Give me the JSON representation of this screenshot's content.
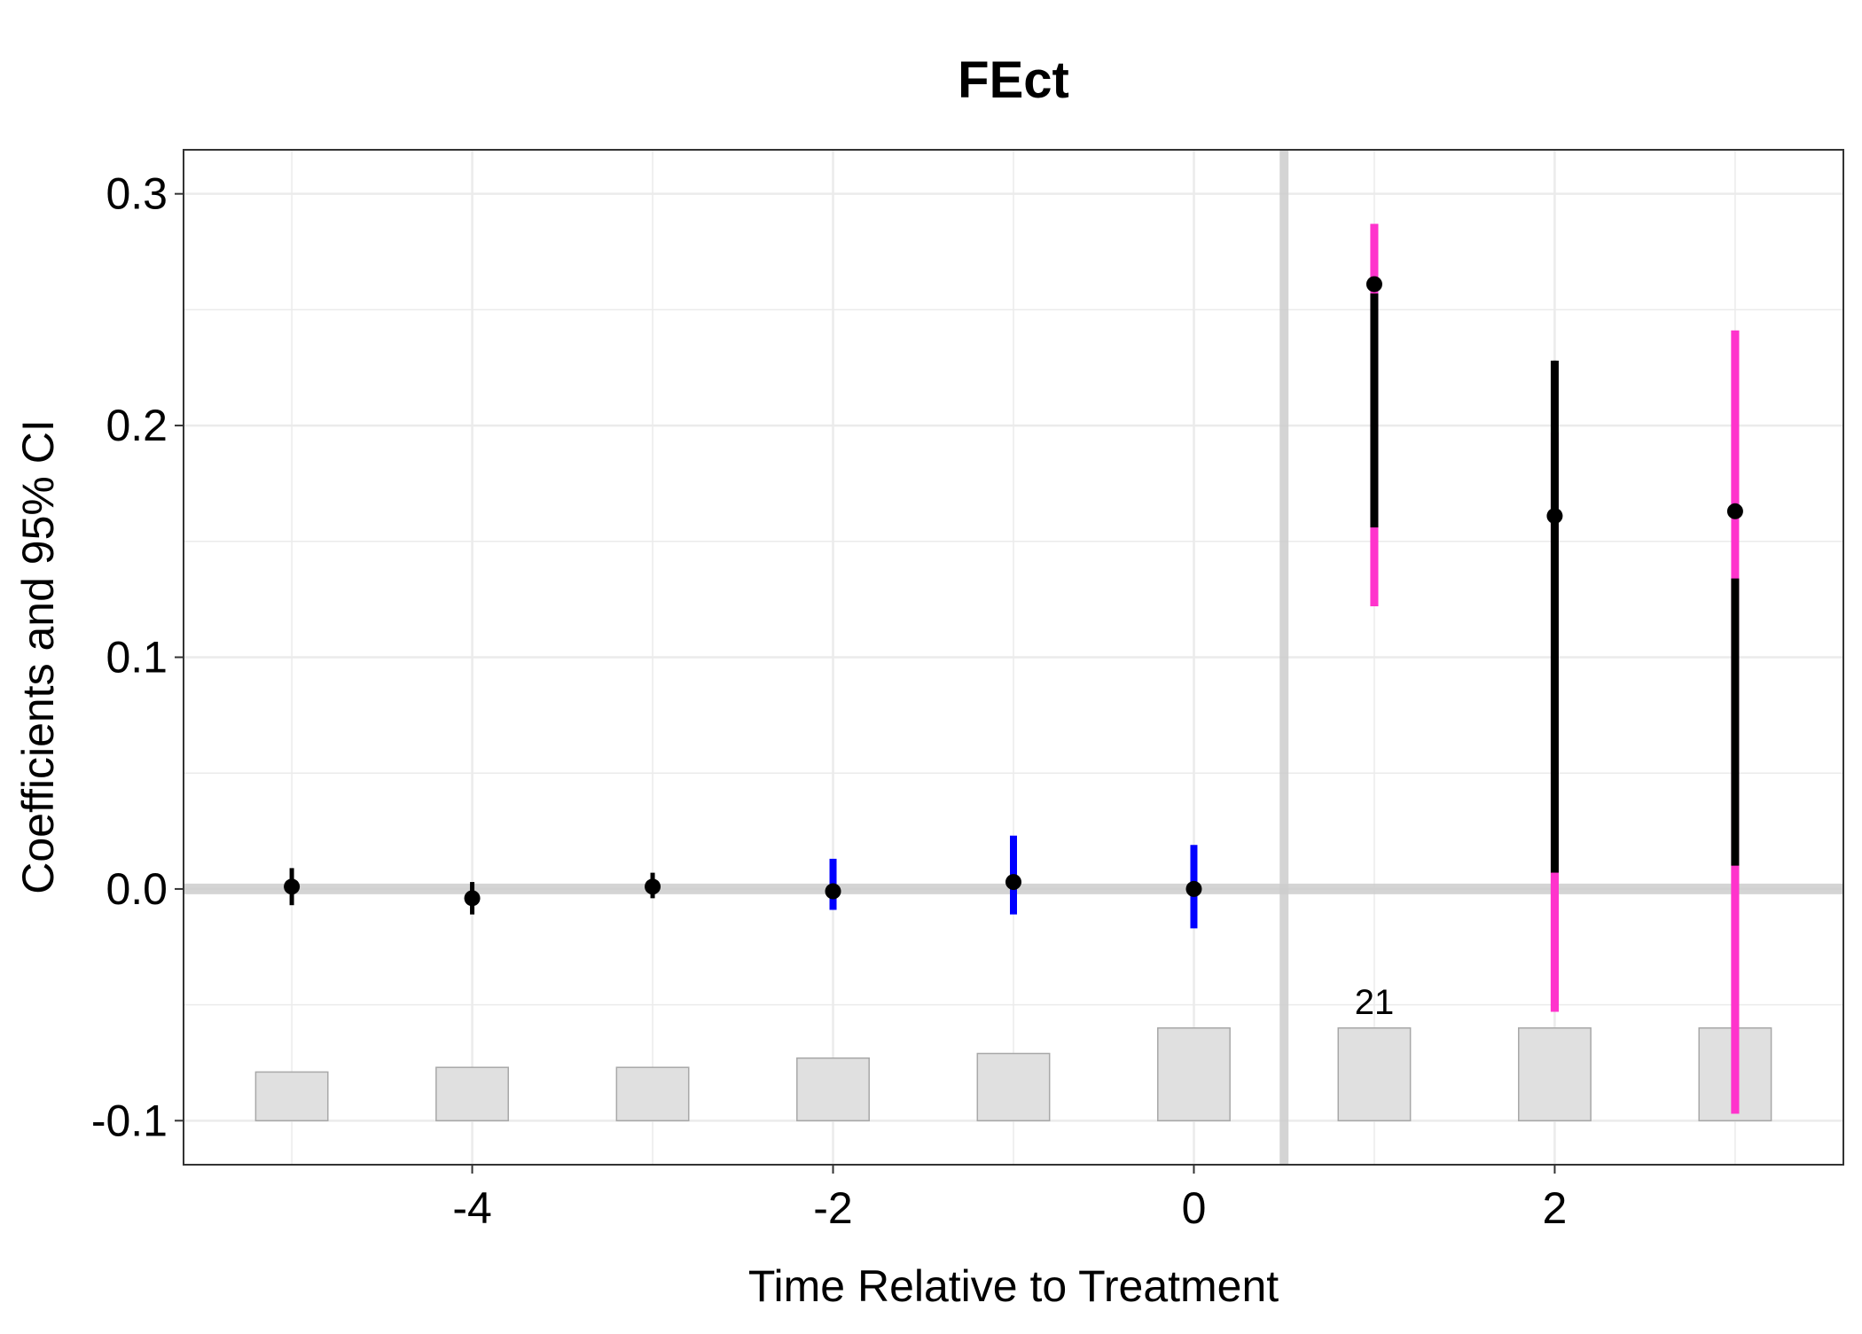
{
  "chart_data": {
    "type": "scatter",
    "title": "FEct",
    "xlabel": "Time Relative to Treatment",
    "ylabel": "Coefficients and 95% CI",
    "xlim": [
      -5.6,
      3.6
    ],
    "ylim": [
      -0.119,
      0.319
    ],
    "x_ticks": [
      -4,
      -2,
      0,
      2
    ],
    "x_tick_labels": [
      "-4",
      "-2",
      "0",
      "2"
    ],
    "y_ticks": [
      -0.1,
      0.0,
      0.1,
      0.2,
      0.3
    ],
    "y_tick_labels": [
      "-0.1",
      "0.0",
      "0.1",
      "0.2",
      "0.3"
    ],
    "grid": true,
    "reference_lines": {
      "horizontal_y": 0.0,
      "vertical_x": 0.5
    },
    "points": [
      {
        "x": -5,
        "y": 0.001,
        "ci_low": -0.007,
        "ci_high": 0.009,
        "color": "#000000"
      },
      {
        "x": -4,
        "y": -0.004,
        "ci_low": -0.011,
        "ci_high": 0.003,
        "color": "#000000"
      },
      {
        "x": -3,
        "y": 0.001,
        "ci_low": -0.004,
        "ci_high": 0.007,
        "color": "#000000"
      },
      {
        "x": -2,
        "y": -0.001,
        "ci_low": -0.009,
        "ci_high": 0.013,
        "color": "#0000FF"
      },
      {
        "x": -1,
        "y": 0.003,
        "ci_low": -0.011,
        "ci_high": 0.023,
        "color": "#0000FF"
      },
      {
        "x": 0,
        "y": 0.0,
        "ci_low": -0.017,
        "ci_high": 0.019,
        "color": "#0000FF"
      },
      {
        "x": 1,
        "y": 0.261,
        "ci_low": 0.156,
        "ci_high": 0.257,
        "color": "#000000",
        "ci2_low": 0.122,
        "ci2_high": 0.287,
        "ci2_color": "#FF33CC"
      },
      {
        "x": 2,
        "y": 0.161,
        "ci_low": 0.007,
        "ci_high": 0.228,
        "color": "#000000",
        "ci2_low": -0.053,
        "ci2_high": 0.197,
        "ci2_color": "#FF33CC"
      },
      {
        "x": 3,
        "y": 0.163,
        "ci_low": 0.01,
        "ci_high": 0.134,
        "color": "#000000",
        "ci2_low": -0.097,
        "ci2_high": 0.241,
        "ci2_color": "#FF33CC"
      }
    ],
    "count_bars": {
      "base": -0.1,
      "heights": [
        {
          "x": -5,
          "top": -0.079
        },
        {
          "x": -4,
          "top": -0.077
        },
        {
          "x": -3,
          "top": -0.077
        },
        {
          "x": -2,
          "top": -0.073
        },
        {
          "x": -1,
          "top": -0.071
        },
        {
          "x": 0,
          "top": -0.06
        },
        {
          "x": 1,
          "top": -0.06
        },
        {
          "x": 2,
          "top": -0.06
        },
        {
          "x": 3,
          "top": -0.06
        }
      ],
      "label_x": 1,
      "label": "21",
      "fill": "#E0E0E0",
      "stroke": "#A8A8A8"
    }
  }
}
